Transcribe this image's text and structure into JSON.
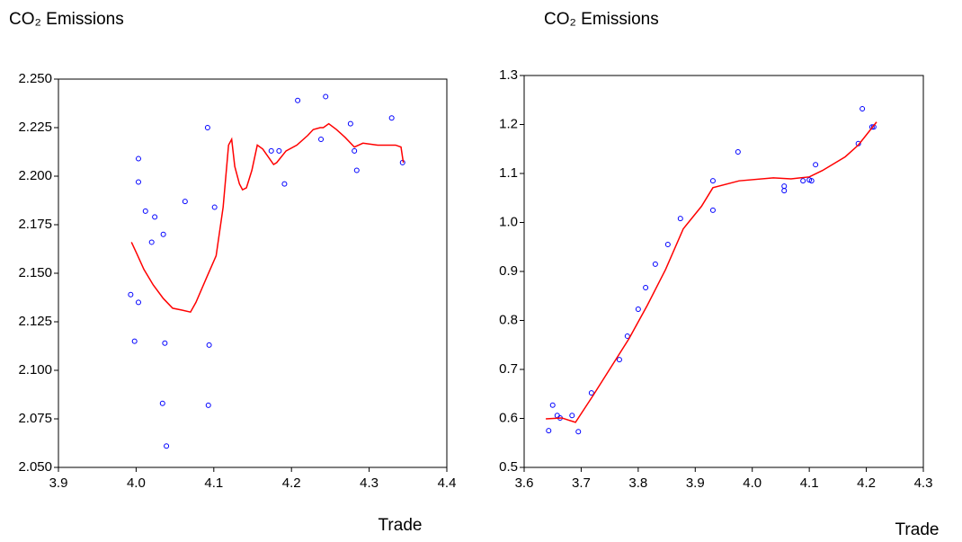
{
  "chart_data": [
    {
      "type": "scatter",
      "title": "CO₂ Emissions",
      "x_label": "Trade",
      "xlim": [
        3.9,
        4.4
      ],
      "ylim": [
        2.05,
        2.25
      ],
      "xticks": [
        3.9,
        {
          "value": 4.0,
          "label": "4.0"
        },
        4.1,
        4.2,
        4.3,
        4.4
      ],
      "yticks": [
        {
          "value": 2.05,
          "label": "2.050"
        },
        {
          "value": 2.075,
          "label": "2.075"
        },
        {
          "value": 2.1,
          "label": "2.100"
        },
        {
          "value": 2.125,
          "label": "2.125"
        },
        {
          "value": 2.15,
          "label": "2.150"
        },
        {
          "value": 2.175,
          "label": "2.175"
        },
        {
          "value": 2.2,
          "label": "2.200"
        },
        {
          "value": 2.225,
          "label": "2.225"
        },
        {
          "value": 2.25,
          "label": "2.250"
        }
      ],
      "series": [
        {
          "type": "scatter",
          "color": "#0000ff",
          "x": [
            3.993,
            4.003,
            4.003,
            4.012,
            4.024,
            4.02,
            4.035,
            4.063,
            4.101,
            4.092,
            4.003,
            3.998,
            4.037,
            4.094,
            4.034,
            4.093,
            4.039,
            4.174,
            4.184,
            4.191,
            4.208,
            4.238,
            4.244,
            4.276,
            4.281,
            4.284,
            4.329,
            4.343
          ],
          "values": [
            2.139,
            2.209,
            2.197,
            2.182,
            2.179,
            2.166,
            2.17,
            2.187,
            2.184,
            2.225,
            2.135,
            2.115,
            2.114,
            2.113,
            2.083,
            2.082,
            2.061,
            2.213,
            2.213,
            2.196,
            2.239,
            2.219,
            2.241,
            2.227,
            2.213,
            2.203,
            2.23,
            2.207
          ]
        },
        {
          "type": "line",
          "color": "#ff0000",
          "x": [
            3.994,
            4.001,
            4.01,
            4.022,
            4.035,
            4.047,
            4.059,
            4.07,
            4.077,
            4.091,
            4.103,
            4.112,
            4.119,
            4.123,
            4.127,
            4.133,
            4.137,
            4.142,
            4.149,
            4.156,
            4.163,
            4.17,
            4.177,
            4.181,
            4.193,
            4.207,
            4.221,
            4.228,
            4.237,
            4.241,
            4.248,
            4.258,
            4.269,
            4.281,
            4.292,
            4.311,
            4.334,
            4.341,
            4.344
          ],
          "values": [
            2.166,
            2.16,
            2.152,
            2.144,
            2.137,
            2.132,
            2.131,
            2.13,
            2.135,
            2.148,
            2.159,
            2.184,
            2.216,
            2.219,
            2.205,
            2.196,
            2.193,
            2.194,
            2.203,
            2.216,
            2.214,
            2.21,
            2.206,
            2.207,
            2.213,
            2.216,
            2.221,
            2.224,
            2.225,
            2.225,
            2.227,
            2.224,
            2.22,
            2.215,
            2.217,
            2.216,
            2.216,
            2.215,
            2.207
          ]
        }
      ]
    },
    {
      "type": "scatter",
      "title": "CO₂ Emissions",
      "x_label": "Trade",
      "xlim": [
        3.6,
        4.3
      ],
      "ylim": [
        0.5,
        1.3
      ],
      "xticks": [
        3.6,
        3.7,
        3.8,
        3.9,
        {
          "value": 4.0,
          "label": "4.0"
        },
        4.1,
        4.2,
        4.3
      ],
      "yticks": [
        0.5,
        0.6,
        0.7,
        0.8,
        0.9,
        {
          "value": 1.0,
          "label": "1.0"
        },
        1.1,
        1.2,
        1.3
      ],
      "series": [
        {
          "type": "scatter",
          "color": "#0000ff",
          "x": [
            3.643,
            3.65,
            3.658,
            3.663,
            3.684,
            3.695,
            3.718,
            3.767,
            3.781,
            3.8,
            3.813,
            3.83,
            3.852,
            3.874,
            3.931,
            3.931,
            3.975,
            4.056,
            4.056,
            4.089,
            4.1,
            4.104,
            4.111,
            4.186,
            4.193,
            4.21,
            4.213
          ],
          "values": [
            0.575,
            0.627,
            0.606,
            0.601,
            0.606,
            0.573,
            0.652,
            0.72,
            0.768,
            0.823,
            0.867,
            0.915,
            0.955,
            1.008,
            1.085,
            1.025,
            1.144,
            1.074,
            1.065,
            1.085,
            1.087,
            1.085,
            1.118,
            1.161,
            1.232,
            1.195,
            1.195
          ]
        },
        {
          "type": "line",
          "color": "#ff0000",
          "x": [
            3.638,
            3.666,
            3.69,
            3.721,
            3.753,
            3.784,
            3.816,
            3.848,
            3.879,
            3.911,
            3.931,
            3.977,
            4.037,
            4.068,
            4.1,
            4.123,
            4.163,
            4.186,
            4.218
          ],
          "values": [
            0.599,
            0.601,
            0.592,
            0.647,
            0.706,
            0.763,
            0.831,
            0.904,
            0.987,
            1.033,
            1.071,
            1.085,
            1.091,
            1.089,
            1.093,
            1.106,
            1.134,
            1.158,
            1.205
          ]
        }
      ]
    }
  ]
}
